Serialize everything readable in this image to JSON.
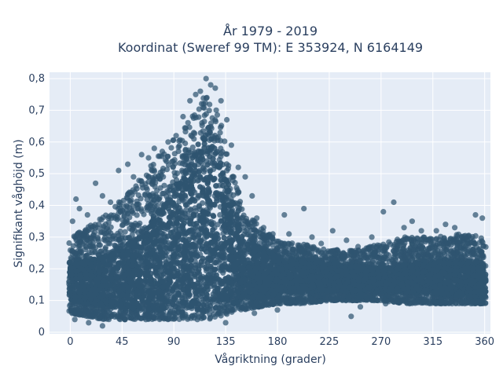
{
  "chart_data": {
    "type": "scatter",
    "title_line1": "År 1979 - 2019",
    "title_line2": "Koordinat (Sweref 99 TM): E 353924, N 6164149",
    "xlabel": "Vågriktning (grader)",
    "ylabel": "Signifikant våghöjd (m)",
    "xlim": [
      -18,
      365
    ],
    "ylim": [
      -0.005,
      0.82
    ],
    "x_ticks": [
      0,
      45,
      90,
      135,
      180,
      225,
      270,
      315,
      360
    ],
    "x_tick_labels": [
      "0",
      "45",
      "90",
      "135",
      "180",
      "225",
      "270",
      "315",
      "360"
    ],
    "y_ticks": [
      0,
      0.1,
      0.2,
      0.3,
      0.4,
      0.5,
      0.6,
      0.7,
      0.8
    ],
    "y_tick_labels": [
      "0",
      "0,1",
      "0,2",
      "0,3",
      "0,4",
      "0,5",
      "0,6",
      "0,7",
      "0,8"
    ],
    "grid": true,
    "marker_color": "#2f5470",
    "plot_bg": "#e5ecf6",
    "envelope": {
      "x": [
        0,
        15,
        30,
        45,
        60,
        75,
        90,
        100,
        110,
        120,
        130,
        140,
        150,
        165,
        180,
        200,
        225,
        250,
        270,
        290,
        315,
        340,
        360
      ],
      "lower": [
        0.06,
        0.05,
        0.04,
        0.04,
        0.04,
        0.04,
        0.04,
        0.04,
        0.04,
        0.04,
        0.05,
        0.06,
        0.07,
        0.08,
        0.09,
        0.09,
        0.1,
        0.1,
        0.1,
        0.09,
        0.09,
        0.09,
        0.09
      ],
      "upper": [
        0.3,
        0.33,
        0.37,
        0.42,
        0.48,
        0.55,
        0.61,
        0.66,
        0.72,
        0.77,
        0.68,
        0.52,
        0.4,
        0.33,
        0.29,
        0.28,
        0.26,
        0.26,
        0.28,
        0.3,
        0.3,
        0.31,
        0.3
      ]
    },
    "core": {
      "x": [
        0,
        30,
        60,
        90,
        105,
        120,
        135,
        150,
        180,
        225,
        270,
        315,
        360
      ],
      "lower": [
        0.1,
        0.08,
        0.07,
        0.07,
        0.07,
        0.07,
        0.08,
        0.1,
        0.12,
        0.13,
        0.13,
        0.12,
        0.11
      ],
      "upper": [
        0.22,
        0.24,
        0.3,
        0.45,
        0.55,
        0.66,
        0.5,
        0.3,
        0.24,
        0.22,
        0.2,
        0.23,
        0.22
      ]
    },
    "scattered_points": [
      [
        2,
        0.35
      ],
      [
        5,
        0.42
      ],
      [
        8,
        0.39
      ],
      [
        15,
        0.37
      ],
      [
        22,
        0.47
      ],
      [
        28,
        0.43
      ],
      [
        35,
        0.41
      ],
      [
        42,
        0.51
      ],
      [
        50,
        0.53
      ],
      [
        55,
        0.49
      ],
      [
        62,
        0.56
      ],
      [
        68,
        0.55
      ],
      [
        73,
        0.58
      ],
      [
        80,
        0.57
      ],
      [
        85,
        0.6
      ],
      [
        92,
        0.62
      ],
      [
        98,
        0.68
      ],
      [
        104,
        0.73
      ],
      [
        109,
        0.75
      ],
      [
        113,
        0.76
      ],
      [
        118,
        0.8
      ],
      [
        122,
        0.78
      ],
      [
        126,
        0.77
      ],
      [
        131,
        0.73
      ],
      [
        136,
        0.67
      ],
      [
        140,
        0.59
      ],
      [
        146,
        0.52
      ],
      [
        152,
        0.49
      ],
      [
        158,
        0.43
      ],
      [
        162,
        0.36
      ],
      [
        168,
        0.33
      ],
      [
        176,
        0.31
      ],
      [
        186,
        0.37
      ],
      [
        190,
        0.31
      ],
      [
        203,
        0.39
      ],
      [
        210,
        0.3
      ],
      [
        218,
        0.28
      ],
      [
        228,
        0.32
      ],
      [
        240,
        0.29
      ],
      [
        250,
        0.27
      ],
      [
        262,
        0.3
      ],
      [
        268,
        0.26
      ],
      [
        272,
        0.38
      ],
      [
        281,
        0.41
      ],
      [
        290,
        0.33
      ],
      [
        297,
        0.35
      ],
      [
        305,
        0.32
      ],
      [
        311,
        0.29
      ],
      [
        318,
        0.32
      ],
      [
        326,
        0.34
      ],
      [
        334,
        0.33
      ],
      [
        340,
        0.3
      ],
      [
        346,
        0.28
      ],
      [
        352,
        0.37
      ],
      [
        358,
        0.36
      ],
      [
        244,
        0.05
      ],
      [
        274,
        0.09
      ],
      [
        252,
        0.08
      ],
      [
        180,
        0.07
      ],
      [
        160,
        0.06
      ],
      [
        16,
        0.03
      ],
      [
        28,
        0.02
      ],
      [
        135,
        0.03
      ],
      [
        4,
        0.04
      ]
    ]
  }
}
